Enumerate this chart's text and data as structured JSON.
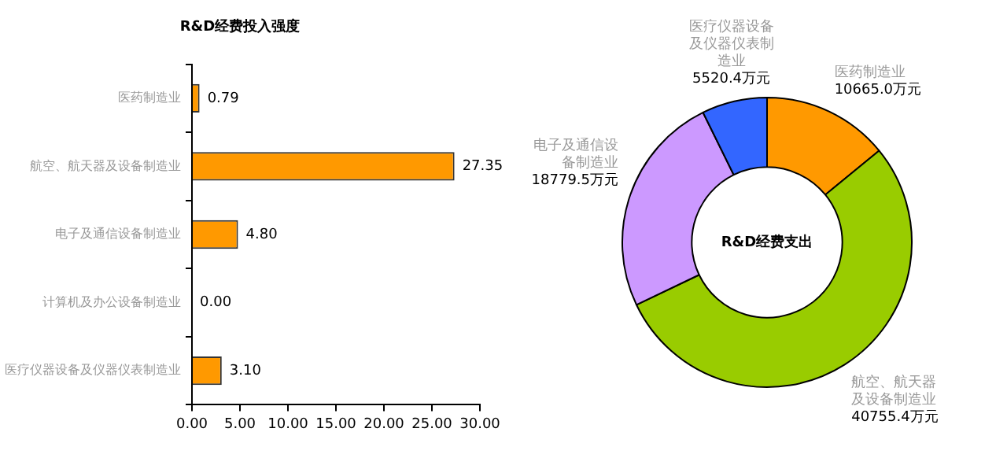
{
  "chart_data": [
    {
      "type": "bar",
      "orientation": "horizontal",
      "title": "R&D经费投入强度",
      "categories": [
        "医药制造业",
        "航空、航天器及设备制造业",
        "电子及通信设备制造业",
        "计算机及办公设备制造业",
        "医疗仪器设备及仪器仪表制造业"
      ],
      "values": [
        0.79,
        27.35,
        4.8,
        0.0,
        3.1
      ],
      "value_labels": [
        "0.79",
        "27.35",
        "4.80",
        "0.00",
        "3.10"
      ],
      "color": "#ff9900",
      "xlim": [
        0,
        30
      ],
      "xticks": [
        {
          "value": 0,
          "label": "0.00"
        },
        {
          "value": 5,
          "label": "5.00"
        },
        {
          "value": 10,
          "label": "10.00"
        },
        {
          "value": 15,
          "label": "15.00"
        },
        {
          "value": 20,
          "label": "20.00"
        },
        {
          "value": 25,
          "label": "25.00"
        },
        {
          "value": 30,
          "label": "30.00"
        }
      ],
      "grid": false,
      "legend": false
    },
    {
      "type": "donut",
      "title": "R&D经费支出",
      "categories": [
        "医药制造业",
        "航空、航天器及设备制造业",
        "电子及通信设备制造业",
        "医疗仪器设备及仪器仪表制造业"
      ],
      "values": [
        10665.0,
        40755.4,
        18779.5,
        5520.4
      ],
      "value_labels": [
        "10665.0万元",
        "40755.4万元",
        "18779.5万元",
        "5520.4万元"
      ],
      "colors": [
        "#ff9900",
        "#99cc00",
        "#cc99ff",
        "#3366ff"
      ],
      "legend": false
    }
  ]
}
